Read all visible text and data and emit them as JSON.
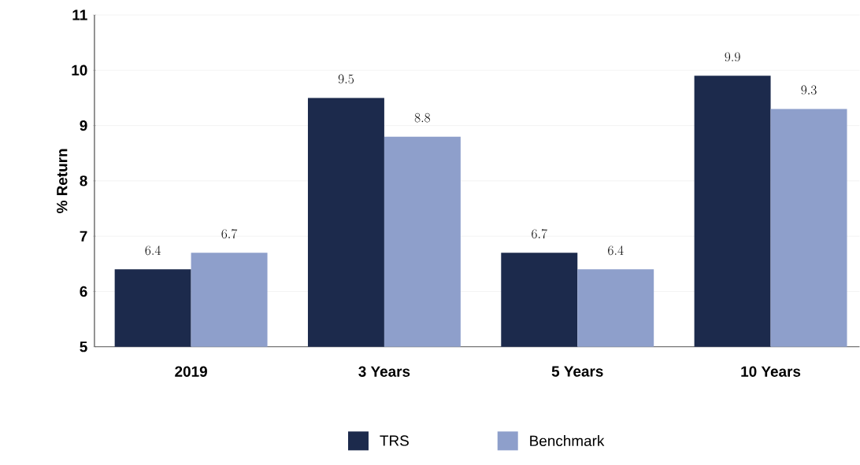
{
  "chart_data": {
    "type": "bar",
    "ylabel": "% Return",
    "categories": [
      "2019",
      "3 Years",
      "5 Years",
      "10 Years"
    ],
    "series": [
      {
        "name": "TRS",
        "color": "#1c2a4c",
        "values": [
          6.4,
          9.5,
          6.7,
          9.9
        ]
      },
      {
        "name": "Benchmark",
        "color": "#8e9fcb",
        "values": [
          6.7,
          8.8,
          6.4,
          9.3
        ]
      }
    ],
    "ylim": [
      5,
      11
    ],
    "yticks": [
      5,
      6,
      7,
      8,
      9,
      10,
      11
    ],
    "grid": "y",
    "legend": "bottom",
    "data_labels": true
  }
}
